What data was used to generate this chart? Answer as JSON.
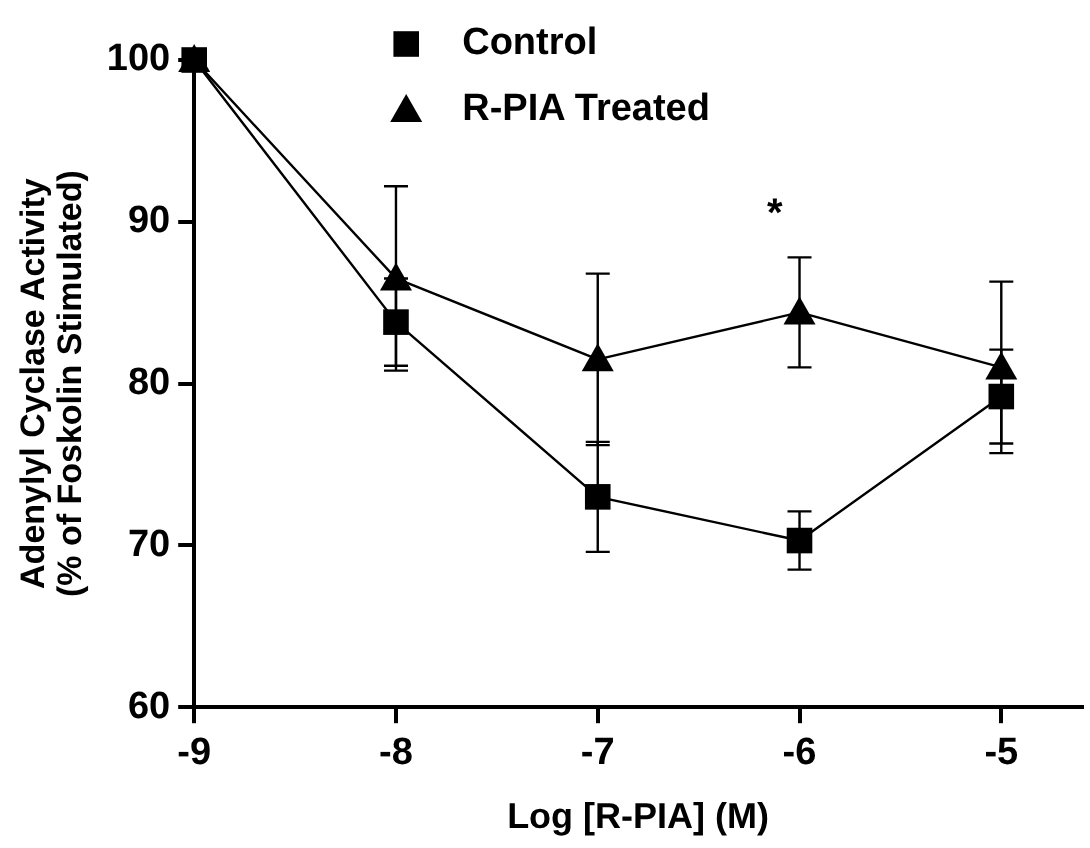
{
  "chart_data": {
    "type": "line",
    "xlabel": "Log [R-PIA] (M)",
    "ylabel": "Adenylyl Cyclase Activity\n(% of Foskolin Stimulated)",
    "x": [
      -9,
      -8,
      -7,
      -6,
      -5
    ],
    "series": [
      {
        "name": "Control",
        "color": "#000000",
        "marker": "square",
        "values": [
          100,
          83.8,
          73,
          70.3,
          79.2
        ],
        "errors": [
          null,
          2.7,
          3.4,
          1.8,
          2.9
        ]
      },
      {
        "name": "R-PIA Treated",
        "color": "#000000",
        "marker": "triangle",
        "values": [
          100,
          86.5,
          81.5,
          84.4,
          81
        ],
        "errors": [
          null,
          5.7,
          5.3,
          3.4,
          5.3
        ]
      }
    ],
    "xlim": [
      -9,
      -4.6
    ],
    "xticks": [
      -9,
      -8,
      -7,
      -6,
      -5
    ],
    "ylim": [
      60,
      100
    ],
    "yticks": [
      60,
      70,
      80,
      90,
      100
    ],
    "annotations": [
      "*"
    ],
    "grid": false,
    "legend": "top",
    "line_style": "solid"
  }
}
